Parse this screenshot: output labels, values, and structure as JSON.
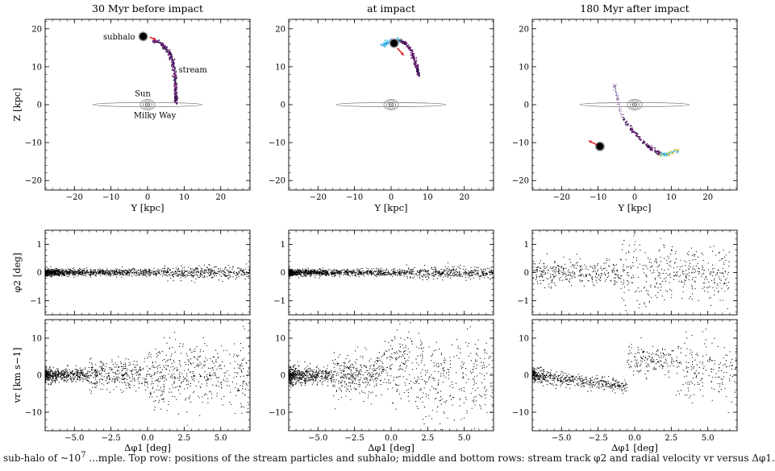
{
  "figure": {
    "columns": [
      {
        "title": "30 Myr before impact",
        "key": "before"
      },
      {
        "title": "at impact",
        "key": "at"
      },
      {
        "title": "180 Myr after impact",
        "key": "after"
      }
    ],
    "annotations": {
      "subhalo": "subhalo",
      "stream": "stream",
      "sun": "Sun",
      "milky_way": "Milky Way"
    },
    "colors": {
      "stream_dark": "#2a0f4a",
      "stream_mid": "#7a1f7a",
      "stream_blue": "#3aa0e8",
      "stream_cyan": "#39c9d6",
      "velocity_arrow": "#e3262c",
      "subhalo": "#000000",
      "disk": "#7f7f7f"
    },
    "caption_left": "sub-halo of ~10",
    "caption_exp": "7",
    "caption_right": "...mple. Top row: positions of the stream particles and subhalo; middle and bottom rows: stream track φ2 and radial velocity vr versus Δφ1."
  },
  "chart_data": [
    {
      "type": "scatter",
      "panel": "top-left",
      "title": "30 Myr before impact",
      "xlabel": "Y [kpc]",
      "ylabel": "Z [kpc]",
      "xlim": [
        -28,
        28
      ],
      "ylim": [
        -22.5,
        22.5
      ],
      "xticks": [
        -20,
        -10,
        0,
        10,
        20
      ],
      "yticks": [
        -20,
        -10,
        0,
        10,
        20
      ],
      "subhalo": [
        -1.2,
        18.0
      ],
      "stream_track": [
        [
          1.4,
          16.8
        ],
        [
          3.5,
          16.2
        ],
        [
          5.2,
          14.8
        ],
        [
          6.5,
          12.5
        ],
        [
          7.2,
          10.0
        ],
        [
          7.5,
          7.5
        ],
        [
          7.6,
          5.0
        ],
        [
          7.7,
          2.5
        ],
        [
          7.8,
          0.4
        ]
      ]
    },
    {
      "type": "scatter",
      "panel": "top-middle",
      "title": "at impact",
      "xlabel": "Y [kpc]",
      "ylabel": "",
      "xlim": [
        -28,
        28
      ],
      "ylim": [
        -22.5,
        22.5
      ],
      "xticks": [
        -20,
        -10,
        0,
        10,
        20
      ],
      "yticks": [
        -20,
        -10,
        0,
        10,
        20
      ],
      "subhalo": [
        0.8,
        16.2
      ],
      "stream_track": [
        [
          -2.5,
          15.5
        ],
        [
          -0.5,
          16.6
        ],
        [
          1.5,
          17.0
        ],
        [
          3.5,
          16.5
        ],
        [
          5.2,
          14.6
        ],
        [
          6.4,
          12.0
        ],
        [
          7.1,
          9.8
        ],
        [
          7.6,
          7.6
        ]
      ]
    },
    {
      "type": "scatter",
      "panel": "top-right",
      "title": "180 Myr after impact",
      "xlabel": "Y [kpc]",
      "ylabel": "",
      "xlim": [
        -28,
        28
      ],
      "ylim": [
        -22.5,
        22.5
      ],
      "xticks": [
        -20,
        -10,
        0,
        10,
        20
      ],
      "yticks": [
        -20,
        -10,
        0,
        10,
        20
      ],
      "subhalo": [
        -9.5,
        -11.0
      ],
      "stream_track": [
        [
          -5.5,
          5.5
        ],
        [
          -4.8,
          2.0
        ],
        [
          -4.0,
          -1.5
        ],
        [
          -2.5,
          -4.5
        ],
        [
          -0.5,
          -7.0
        ],
        [
          2.0,
          -9.5
        ],
        [
          4.5,
          -11.5
        ],
        [
          7.0,
          -13.0
        ],
        [
          9.0,
          -13.2
        ],
        [
          12.0,
          -12.0
        ]
      ]
    },
    {
      "type": "scatter",
      "panel": "middle-row",
      "xlabel": "",
      "ylabel": "φ2 [deg]",
      "xlim": [
        -7,
        7
      ],
      "ylim": [
        -1.5,
        1.5
      ],
      "yticks": [
        -1,
        0,
        1
      ],
      "series": [
        {
          "column": "30 Myr before impact",
          "center": 0.0,
          "spread": 0.06
        },
        {
          "column": "at impact",
          "center": 0.0,
          "spread": 0.06
        },
        {
          "column": "180 Myr after impact",
          "center": 0.0,
          "spread": 0.35
        }
      ]
    },
    {
      "type": "scatter",
      "panel": "bottom-row",
      "xlabel": "Δφ1 [deg]",
      "ylabel": "vr [km s−1]",
      "xlim": [
        -7,
        7
      ],
      "ylim": [
        -15,
        15
      ],
      "xticks": [
        -5.0,
        -2.5,
        0.0,
        2.5,
        5.0
      ],
      "yticks": [
        -10,
        0,
        10
      ],
      "xtick_labels": [
        "−5.0",
        "−2.5",
        "0.0",
        "2.5",
        "5.0"
      ],
      "series": [
        {
          "column": "30 Myr before impact",
          "center": 0.0,
          "spread": 1.5
        },
        {
          "column": "at impact",
          "center": 0.0,
          "spread": 2.0
        },
        {
          "column": "180 Myr after impact",
          "kink_at": -0.5,
          "pre_offset": -3.0,
          "post_offset": 4.5
        }
      ]
    }
  ]
}
